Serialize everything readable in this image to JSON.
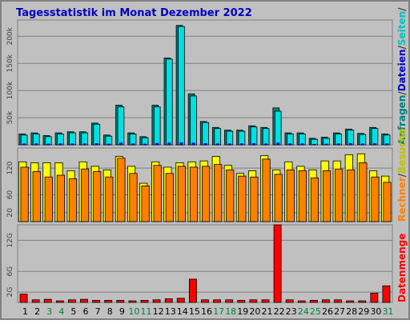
{
  "chart_data": {
    "type": "bar",
    "title": "Tagesstatistik im Monat Dezember 2022",
    "days": [
      "1",
      "2",
      "3",
      "4",
      "5",
      "6",
      "7",
      "8",
      "9",
      "10",
      "11",
      "12",
      "13",
      "14",
      "15",
      "16",
      "17",
      "18",
      "19",
      "20",
      "21",
      "22",
      "23",
      "24",
      "25",
      "26",
      "27",
      "28",
      "29",
      "30",
      "31"
    ],
    "weekend_days": [
      "3",
      "4",
      "10",
      "11",
      "17",
      "18",
      "24",
      "25",
      "31"
    ],
    "panels": [
      {
        "id": "top",
        "ylim": [
          0,
          230000
        ],
        "ytick_labels": [
          "50k",
          "100k",
          "150k",
          "200k"
        ],
        "ytick_values": [
          50000,
          100000,
          150000,
          200000
        ],
        "series": [
          {
            "name": "Anfragen",
            "color": "#00c0c0",
            "values": [
              20000,
              22000,
              17000,
              22000,
              24000,
              24000,
              40000,
              18000,
              73000,
              22000,
              15000,
              73000,
              160000,
              220000,
              94000,
              43000,
              32000,
              27000,
              27000,
              35000,
              32000,
              68000,
              22000,
              22000,
              12000,
              14000,
              22000,
              29000,
              21000,
              32000,
              20000
            ]
          },
          {
            "name": "Dateien",
            "color": "#00e0e0",
            "values": [
              18000,
              20000,
              15000,
              20000,
              22000,
              22000,
              38000,
              16000,
              70000,
              20000,
              13000,
              70000,
              158000,
              218000,
              90000,
              41000,
              30000,
              25000,
              25000,
              33000,
              30000,
              62000,
              20000,
              20000,
              10000,
              12000,
              20000,
              27000,
              19000,
              30000,
              18000
            ]
          },
          {
            "name": "Seiten",
            "color": "#0000ff",
            "values": [
              2500,
              2500,
              2000,
              2500,
              2500,
              2500,
              3000,
              2000,
              4000,
              2500,
              2000,
              3500,
              4000,
              4500,
              4000,
              3000,
              2500,
              2500,
              2500,
              3000,
              2500,
              4000,
              2500,
              2500,
              1500,
              2000,
              2500,
              3000,
              2500,
              3000,
              2500
            ]
          }
        ]
      },
      {
        "id": "middle",
        "ylim": [
          0,
          165
        ],
        "ytick_labels": [
          "20",
          "60",
          "120"
        ],
        "ytick_values": [
          20,
          60,
          120
        ],
        "series": [
          {
            "name": "Rechner",
            "color": "#ff8000",
            "values": [
              122,
              112,
              100,
              104,
              96,
              118,
              112,
              100,
              142,
              108,
              80,
              126,
              108,
              124,
              122,
              124,
              128,
              116,
              102,
              100,
              140,
              106,
              116,
              114,
              98,
              114,
              118,
              116,
              132,
              100,
              88
            ]
          },
          {
            "name": "Besuche",
            "color": "#ffff00",
            "values": [
              134,
              132,
              132,
              132,
              114,
              134,
              124,
              116,
              146,
              124,
              86,
              134,
              122,
              132,
              134,
              136,
              146,
              126,
              108,
              114,
              148,
              116,
              134,
              124,
              116,
              136,
              136,
              150,
              152,
              114,
              102
            ]
          }
        ]
      },
      {
        "id": "bottom",
        "ylim": [
          0,
          150
        ],
        "ytick_labels": [
          "2G",
          "6G",
          "12G"
        ],
        "ytick_values": [
          20,
          60,
          120
        ],
        "series": [
          {
            "name": "Datenmenge",
            "color": "#ff0000",
            "values": [
              16,
              5,
              6,
              3,
              5,
              6,
              4,
              4,
              4,
              3,
              4,
              5,
              7,
              8,
              45,
              5,
              5,
              5,
              4,
              5,
              5,
              150,
              5,
              3,
              4,
              5,
              5,
              3,
              3,
              18,
              32
            ]
          }
        ]
      }
    ],
    "legend_labels": {
      "top": [
        {
          "text": "Anfragen",
          "color": "#008080"
        },
        {
          "text": "/",
          "color": "#404040"
        },
        {
          "text": "Dateien",
          "color": "#0000c0"
        },
        {
          "text": "/",
          "color": "#404040"
        },
        {
          "text": "Seiten",
          "color": "#00c0c0"
        },
        {
          "text": "/",
          "color": "#404040"
        }
      ],
      "middle": [
        {
          "text": "Rechner",
          "color": "#ff8000"
        },
        {
          "text": "/",
          "color": "#404040"
        },
        {
          "text": "Besuche",
          "color": "#c0c000"
        }
      ],
      "bottom": [
        {
          "text": "Datenmenge",
          "color": "#ff0000"
        }
      ]
    },
    "colors": {
      "background": "#c0c0c0",
      "grid": "#808080",
      "title": "#0000c0",
      "weekday_label": "#000000",
      "weekend_label": "#008040",
      "bar_outline": "#000000"
    },
    "grid": true
  }
}
